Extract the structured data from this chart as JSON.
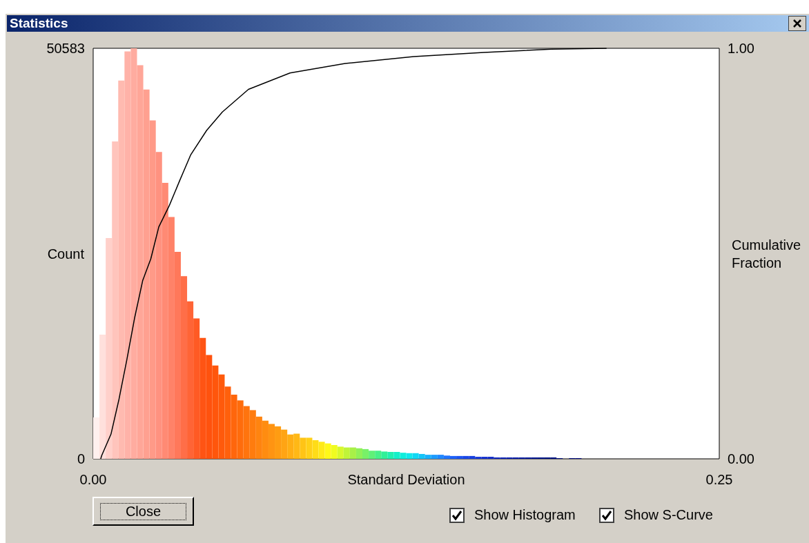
{
  "chart_data": {
    "type": "histogram",
    "title": "Statistics",
    "xlabel": "Standard Deviation",
    "ylabel": "Count",
    "y2label": "Cumulative Fraction",
    "xlim": [
      0,
      0.25
    ],
    "xticks": [
      {
        "value": 0,
        "label": "0.00"
      },
      {
        "value": 0.25,
        "label": "0.25"
      }
    ],
    "ylim": [
      0,
      50583
    ],
    "yticks": [
      0,
      50583
    ],
    "y2lim": [
      0,
      1
    ],
    "y2ticks": [
      {
        "value": 0,
        "label": "0.00"
      },
      {
        "value": 1,
        "label": "1.00"
      }
    ],
    "grid": false,
    "annotations": [
      "Close",
      "Show Histogram",
      "Show S-Curve"
    ],
    "series": [
      {
        "bins": [
          0,
          0.0025,
          0.005,
          0.0075,
          0.01,
          0.0125,
          0.015,
          0.0175,
          0.02,
          0.0225,
          0.025,
          0.0275,
          0.03,
          0.0325,
          0.035,
          0.0375,
          0.04,
          0.0425,
          0.045,
          0.0475,
          0.05,
          0.0525,
          0.055,
          0.0575,
          0.06,
          0.0625,
          0.065,
          0.0675,
          0.07,
          0.0725,
          0.075,
          0.0775,
          0.08,
          0.0825,
          0.085,
          0.0875,
          0.09,
          0.0925,
          0.095,
          0.0975,
          0.1,
          0.1025,
          0.105,
          0.1075,
          0.11,
          0.1125,
          0.115,
          0.1175,
          0.12,
          0.1225,
          0.125,
          0.1275,
          0.13,
          0.1325,
          0.135,
          0.1375,
          0.14,
          0.1425,
          0.145,
          0.1475,
          0.15,
          0.1525,
          0.155,
          0.1575,
          0.16,
          0.1625,
          0.165,
          0.1675,
          0.17,
          0.1725,
          0.175,
          0.1775,
          0.18,
          0.1825,
          0.185,
          0.1875,
          0.19,
          0.1925,
          0.195
        ],
        "values": [
          5100,
          15300,
          27200,
          39100,
          46600,
          50200,
          50583,
          48500,
          45500,
          41700,
          37800,
          34000,
          29800,
          25500,
          22500,
          19400,
          17300,
          14900,
          12800,
          11500,
          10400,
          8900,
          7900,
          7200,
          6500,
          6000,
          5200,
          4700,
          4300,
          4000,
          3600,
          3000,
          3100,
          2600,
          2600,
          2300,
          2100,
          1900,
          1700,
          1500,
          1400,
          1400,
          1300,
          1200,
          1000,
          1000,
          900,
          850,
          850,
          750,
          700,
          700,
          600,
          500,
          500,
          500,
          400,
          350,
          350,
          350,
          350,
          250,
          250,
          250,
          170,
          170,
          170,
          170,
          170,
          170,
          170,
          170,
          170,
          170,
          85,
          0,
          85,
          85
        ],
        "colors": [
          "#fff0ee",
          "#ffe0dc",
          "#ffd0ca",
          "#ffc4bc",
          "#ffbab0",
          "#ffb2a8",
          "#ffaca0",
          "#ffa698",
          "#ffa090",
          "#ff9a88",
          "#ff9280",
          "#ff8a74",
          "#ff8268",
          "#ff785a",
          "#ff6e48",
          "#ff6436",
          "#ff5a24",
          "#ff5414",
          "#ff520e",
          "#ff560c",
          "#ff5a0c",
          "#ff600c",
          "#ff660c",
          "#ff6c0c",
          "#ff740e",
          "#ff7c0e",
          "#ff8410",
          "#ff8c10",
          "#ff9412",
          "#ff9c12",
          "#ffa414",
          "#ffae14",
          "#ffb816",
          "#ffc416",
          "#ffd018",
          "#ffdc18",
          "#ffea18",
          "#fff818",
          "#f0fc20",
          "#d8f82c",
          "#c0f438",
          "#a8f048",
          "#90f058",
          "#78f068",
          "#60f078",
          "#48f088",
          "#30f098",
          "#20f0b0",
          "#14f0c8",
          "#10eedc",
          "#10e8ec",
          "#10d8f4",
          "#14c4f8",
          "#18b0fc",
          "#1c9cff",
          "#2088ff",
          "#2074ff",
          "#1e62f8",
          "#1c54f0",
          "#1a48e8",
          "#1840e0",
          "#1638d8",
          "#1430d0",
          "#122cc8",
          "#1028c0",
          "#0e24b8",
          "#0c20b0",
          "#0a1ca8",
          "#081aa0",
          "#061898",
          "#041690",
          "#021488",
          "#001280",
          "#001080",
          "#000e80",
          "#000c80",
          "#000a80",
          "#000880"
        ]
      },
      {
        "type": "line",
        "axis": "y2",
        "color": "#000000",
        "marker": "none",
        "x": [
          0.003,
          0.0034,
          0.0071,
          0.0103,
          0.0134,
          0.0166,
          0.0198,
          0.023,
          0.0262,
          0.0304,
          0.0347,
          0.0389,
          0.0453,
          0.0516,
          0.062,
          0.0786,
          0.1006,
          0.128,
          0.156,
          0.183,
          0.205
        ],
        "values": [
          0,
          0.008,
          0.06,
          0.145,
          0.24,
          0.345,
          0.435,
          0.487,
          0.565,
          0.617,
          0.68,
          0.74,
          0.8,
          0.845,
          0.9,
          0.94,
          0.963,
          0.98,
          0.99,
          0.998,
          1
        ]
      }
    ]
  }
}
